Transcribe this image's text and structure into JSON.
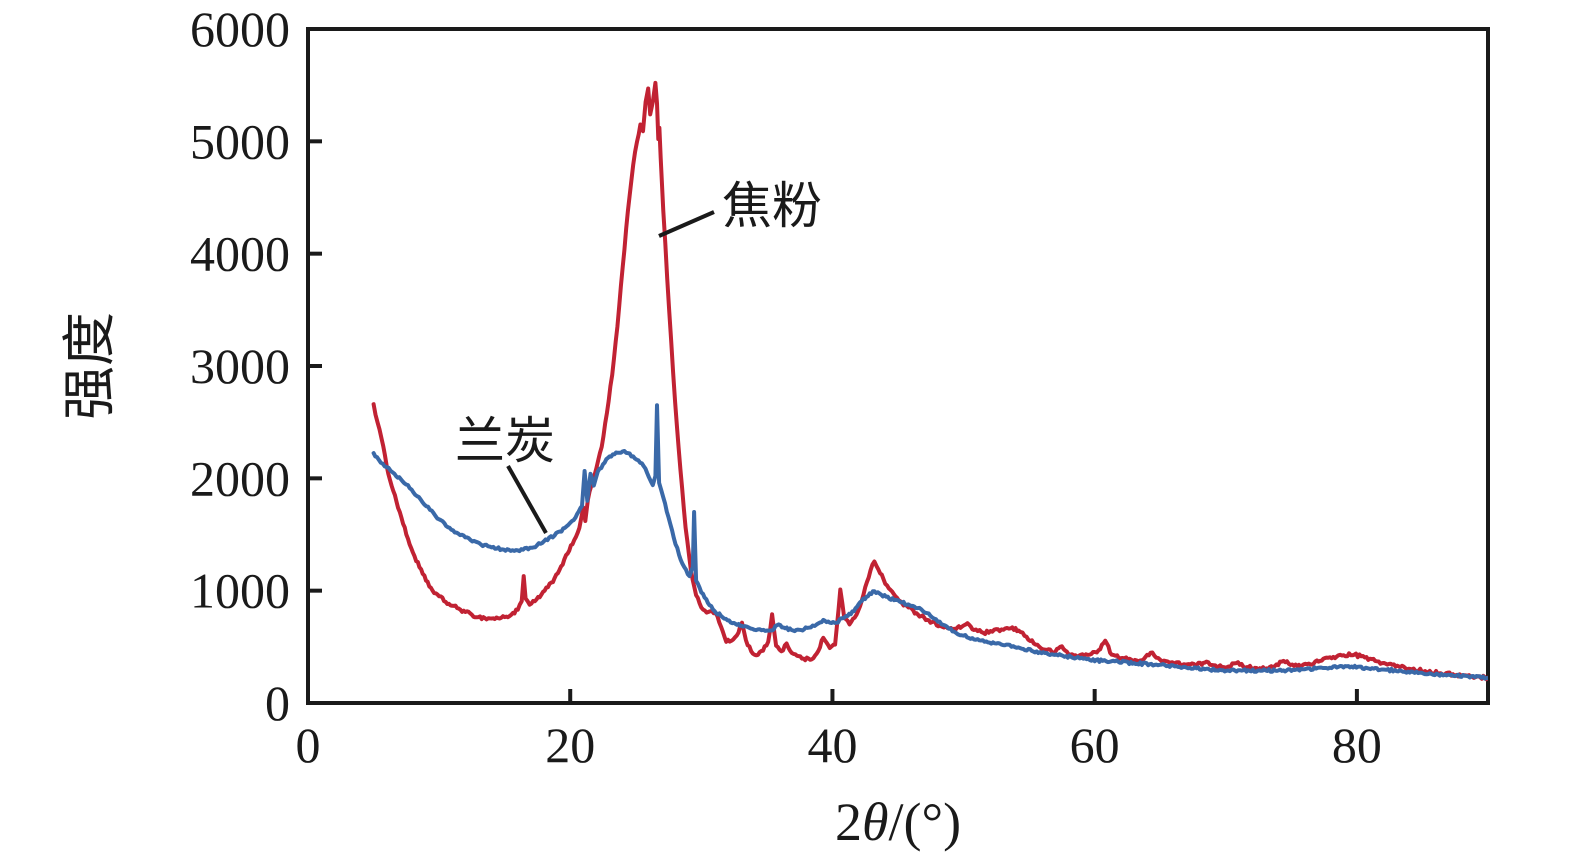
{
  "figure": {
    "kind": "XRD diffraction pattern comparison",
    "background": "#ffffff",
    "axis_color": "#1a1a1a"
  },
  "labels": {
    "ylabel": "强度",
    "xlabel": "2θ/(°)",
    "xlabel_prefix": "2",
    "xlabel_theta": "θ",
    "xlabel_suffix": "/(°)"
  },
  "annotations": [
    {
      "text": "焦粉",
      "series": "jiaofen"
    },
    {
      "text": "兰炭",
      "series": "lantan"
    }
  ],
  "chart_data": {
    "type": "line",
    "title": "",
    "xlabel": "2θ/(°)",
    "ylabel": "强度",
    "xlim": [
      0,
      90
    ],
    "ylim": [
      0,
      6000
    ],
    "xticks": [
      0,
      20,
      40,
      60,
      80
    ],
    "yticks": [
      0,
      1000,
      2000,
      3000,
      4000,
      5000,
      6000
    ],
    "grid": false,
    "legend_position": "inline-annotations",
    "series": [
      {
        "id": "jiaofen",
        "name": "焦粉",
        "color": "#c12233",
        "linewidth": 4,
        "noise": 15,
        "points": [
          [
            5.0,
            2660
          ],
          [
            5.3,
            2500
          ],
          [
            5.6,
            2360
          ],
          [
            6.0,
            2110
          ],
          [
            6.5,
            1890
          ],
          [
            7.0,
            1700
          ],
          [
            7.5,
            1500
          ],
          [
            8.0,
            1340
          ],
          [
            8.5,
            1210
          ],
          [
            9.0,
            1090
          ],
          [
            9.5,
            1000
          ],
          [
            10.0,
            950
          ],
          [
            10.5,
            900
          ],
          [
            11.0,
            865
          ],
          [
            11.5,
            840
          ],
          [
            12.0,
            810
          ],
          [
            12.5,
            785
          ],
          [
            13.0,
            765
          ],
          [
            13.5,
            755
          ],
          [
            14.0,
            752
          ],
          [
            14.5,
            755
          ],
          [
            15.0,
            765
          ],
          [
            15.5,
            785
          ],
          [
            16.0,
            830
          ],
          [
            16.3,
            905
          ],
          [
            16.45,
            1130
          ],
          [
            16.6,
            930
          ],
          [
            16.9,
            875
          ],
          [
            17.3,
            905
          ],
          [
            17.8,
            965
          ],
          [
            18.3,
            1030
          ],
          [
            18.8,
            1110
          ],
          [
            19.3,
            1215
          ],
          [
            19.8,
            1330
          ],
          [
            20.3,
            1450
          ],
          [
            20.7,
            1560
          ],
          [
            21.0,
            1740
          ],
          [
            21.15,
            1620
          ],
          [
            21.35,
            1810
          ],
          [
            21.6,
            1930
          ],
          [
            22.0,
            2090
          ],
          [
            22.4,
            2280
          ],
          [
            22.8,
            2580
          ],
          [
            23.2,
            2920
          ],
          [
            23.6,
            3350
          ],
          [
            24.0,
            3880
          ],
          [
            24.4,
            4380
          ],
          [
            24.8,
            4790
          ],
          [
            25.1,
            5000
          ],
          [
            25.35,
            5150
          ],
          [
            25.55,
            5090
          ],
          [
            25.75,
            5350
          ],
          [
            25.95,
            5470
          ],
          [
            26.1,
            5240
          ],
          [
            26.3,
            5350
          ],
          [
            26.5,
            5520
          ],
          [
            26.62,
            5340
          ],
          [
            26.72,
            5020
          ],
          [
            26.8,
            5120
          ],
          [
            26.9,
            4850
          ],
          [
            27.1,
            4380
          ],
          [
            27.4,
            3780
          ],
          [
            27.7,
            3220
          ],
          [
            28.0,
            2680
          ],
          [
            28.4,
            2080
          ],
          [
            28.8,
            1560
          ],
          [
            29.2,
            1190
          ],
          [
            29.6,
            960
          ],
          [
            30.0,
            850
          ],
          [
            30.4,
            805
          ],
          [
            30.8,
            820
          ],
          [
            31.1,
            800
          ],
          [
            31.5,
            680
          ],
          [
            31.9,
            545
          ],
          [
            32.3,
            555
          ],
          [
            32.7,
            600
          ],
          [
            33.1,
            715
          ],
          [
            33.4,
            560
          ],
          [
            33.8,
            460
          ],
          [
            34.2,
            425
          ],
          [
            34.7,
            465
          ],
          [
            35.1,
            545
          ],
          [
            35.4,
            790
          ],
          [
            35.7,
            510
          ],
          [
            36.1,
            460
          ],
          [
            36.5,
            530
          ],
          [
            36.9,
            445
          ],
          [
            37.3,
            420
          ],
          [
            37.8,
            395
          ],
          [
            38.3,
            385
          ],
          [
            38.8,
            440
          ],
          [
            39.3,
            580
          ],
          [
            39.8,
            490
          ],
          [
            40.2,
            520
          ],
          [
            40.6,
            1010
          ],
          [
            40.9,
            760
          ],
          [
            41.3,
            700
          ],
          [
            41.7,
            760
          ],
          [
            42.1,
            860
          ],
          [
            42.5,
            1030
          ],
          [
            42.9,
            1180
          ],
          [
            43.2,
            1260
          ],
          [
            43.5,
            1190
          ],
          [
            43.9,
            1100
          ],
          [
            44.3,
            1020
          ],
          [
            44.8,
            950
          ],
          [
            45.3,
            890
          ],
          [
            45.8,
            850
          ],
          [
            46.4,
            800
          ],
          [
            47.0,
            760
          ],
          [
            47.6,
            720
          ],
          [
            48.2,
            690
          ],
          [
            48.8,
            665
          ],
          [
            49.4,
            655
          ],
          [
            50.0,
            690
          ],
          [
            50.3,
            710
          ],
          [
            50.8,
            650
          ],
          [
            51.5,
            625
          ],
          [
            52.2,
            635
          ],
          [
            52.9,
            655
          ],
          [
            53.6,
            665
          ],
          [
            54.2,
            645
          ],
          [
            54.8,
            590
          ],
          [
            55.5,
            520
          ],
          [
            56.2,
            475
          ],
          [
            57.0,
            455
          ],
          [
            57.5,
            505
          ],
          [
            58.0,
            435
          ],
          [
            58.8,
            420
          ],
          [
            59.6,
            430
          ],
          [
            60.3,
            470
          ],
          [
            60.8,
            555
          ],
          [
            61.3,
            430
          ],
          [
            62.0,
            400
          ],
          [
            62.8,
            385
          ],
          [
            63.6,
            380
          ],
          [
            64.4,
            450
          ],
          [
            65.0,
            385
          ],
          [
            65.8,
            360
          ],
          [
            66.8,
            345
          ],
          [
            67.8,
            340
          ],
          [
            68.4,
            360
          ],
          [
            69.2,
            335
          ],
          [
            70.2,
            325
          ],
          [
            70.8,
            355
          ],
          [
            71.6,
            320
          ],
          [
            72.6,
            310
          ],
          [
            73.6,
            315
          ],
          [
            74.4,
            375
          ],
          [
            75.2,
            330
          ],
          [
            76.2,
            345
          ],
          [
            77.2,
            375
          ],
          [
            78.2,
            410
          ],
          [
            79.0,
            425
          ],
          [
            79.8,
            430
          ],
          [
            80.6,
            405
          ],
          [
            81.4,
            375
          ],
          [
            82.2,
            350
          ],
          [
            83.2,
            325
          ],
          [
            84.2,
            300
          ],
          [
            85.2,
            285
          ],
          [
            86.4,
            265
          ],
          [
            87.6,
            250
          ],
          [
            88.8,
            235
          ],
          [
            90.0,
            225
          ]
        ]
      },
      {
        "id": "lantan",
        "name": "兰炭",
        "color": "#3a69a8",
        "linewidth": 4,
        "noise": 12,
        "points": [
          [
            5.0,
            2225
          ],
          [
            5.4,
            2165
          ],
          [
            6.0,
            2100
          ],
          [
            6.6,
            2040
          ],
          [
            7.2,
            1975
          ],
          [
            7.9,
            1900
          ],
          [
            8.6,
            1810
          ],
          [
            9.3,
            1720
          ],
          [
            10.0,
            1635
          ],
          [
            10.8,
            1560
          ],
          [
            11.6,
            1495
          ],
          [
            12.4,
            1450
          ],
          [
            13.2,
            1410
          ],
          [
            14.0,
            1385
          ],
          [
            14.8,
            1368
          ],
          [
            15.6,
            1360
          ],
          [
            16.4,
            1365
          ],
          [
            17.2,
            1385
          ],
          [
            18.0,
            1440
          ],
          [
            18.8,
            1490
          ],
          [
            19.6,
            1560
          ],
          [
            20.4,
            1650
          ],
          [
            20.9,
            1755
          ],
          [
            21.1,
            2065
          ],
          [
            21.3,
            1800
          ],
          [
            21.55,
            2040
          ],
          [
            21.8,
            1935
          ],
          [
            22.1,
            2060
          ],
          [
            22.5,
            2125
          ],
          [
            23.0,
            2195
          ],
          [
            23.5,
            2230
          ],
          [
            24.0,
            2240
          ],
          [
            24.4,
            2225
          ],
          [
            24.8,
            2195
          ],
          [
            25.2,
            2160
          ],
          [
            25.6,
            2110
          ],
          [
            26.0,
            2010
          ],
          [
            26.3,
            1940
          ],
          [
            26.5,
            2020
          ],
          [
            26.62,
            2650
          ],
          [
            26.78,
            1960
          ],
          [
            27.1,
            1830
          ],
          [
            27.5,
            1650
          ],
          [
            27.9,
            1470
          ],
          [
            28.3,
            1320
          ],
          [
            28.7,
            1210
          ],
          [
            29.1,
            1130
          ],
          [
            29.35,
            1210
          ],
          [
            29.45,
            1700
          ],
          [
            29.6,
            1090
          ],
          [
            30.0,
            985
          ],
          [
            30.5,
            890
          ],
          [
            31.0,
            820
          ],
          [
            31.5,
            775
          ],
          [
            32.0,
            735
          ],
          [
            32.6,
            705
          ],
          [
            33.2,
            680
          ],
          [
            33.9,
            660
          ],
          [
            34.6,
            648
          ],
          [
            35.3,
            645
          ],
          [
            35.9,
            700
          ],
          [
            36.4,
            665
          ],
          [
            37.0,
            645
          ],
          [
            37.6,
            650
          ],
          [
            38.2,
            670
          ],
          [
            38.8,
            700
          ],
          [
            39.3,
            740
          ],
          [
            39.8,
            715
          ],
          [
            40.3,
            715
          ],
          [
            40.8,
            755
          ],
          [
            41.4,
            790
          ],
          [
            42.0,
            880
          ],
          [
            42.6,
            945
          ],
          [
            43.2,
            995
          ],
          [
            43.6,
            975
          ],
          [
            44.1,
            945
          ],
          [
            44.7,
            915
          ],
          [
            45.3,
            895
          ],
          [
            45.9,
            870
          ],
          [
            46.5,
            845
          ],
          [
            47.2,
            800
          ],
          [
            47.9,
            745
          ],
          [
            48.6,
            690
          ],
          [
            49.3,
            635
          ],
          [
            50.0,
            600
          ],
          [
            50.8,
            565
          ],
          [
            51.6,
            545
          ],
          [
            52.5,
            530
          ],
          [
            53.4,
            520
          ],
          [
            54.3,
            490
          ],
          [
            55.2,
            465
          ],
          [
            56.2,
            445
          ],
          [
            57.2,
            425
          ],
          [
            58.2,
            410
          ],
          [
            59.4,
            390
          ],
          [
            60.6,
            375
          ],
          [
            61.8,
            368
          ],
          [
            63.0,
            355
          ],
          [
            64.2,
            345
          ],
          [
            65.6,
            330
          ],
          [
            67.0,
            315
          ],
          [
            68.4,
            300
          ],
          [
            69.8,
            292
          ],
          [
            71.2,
            288
          ],
          [
            72.8,
            288
          ],
          [
            74.4,
            290
          ],
          [
            76.0,
            300
          ],
          [
            77.4,
            312
          ],
          [
            78.6,
            322
          ],
          [
            79.6,
            325
          ],
          [
            80.8,
            310
          ],
          [
            82.0,
            298
          ],
          [
            83.4,
            285
          ],
          [
            84.8,
            270
          ],
          [
            86.2,
            255
          ],
          [
            87.6,
            242
          ],
          [
            89.0,
            230
          ],
          [
            90.0,
            222
          ]
        ]
      }
    ]
  }
}
